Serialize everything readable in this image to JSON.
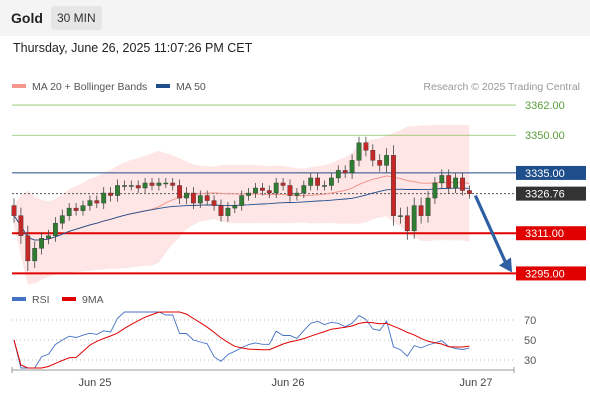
{
  "header": {
    "instrument": "Gold",
    "timeframe": "30 MIN"
  },
  "timestamp": "Thursday, June 26, 2025 11:07:26 PM CET",
  "colors": {
    "ma20": "#f4978e",
    "ma50": "#1f4e8c",
    "rsi": "#4472c4",
    "rsi_ma": "#e00000",
    "bands": "#fde2e0"
  },
  "chart_data": [
    {
      "type": "candlestick",
      "legend": [
        {
          "name": "MA 20 + Bollinger Bands",
          "color": "#f4978e"
        },
        {
          "name": "MA 50",
          "color": "#1f4e8c"
        }
      ],
      "watermark": "Research © 2025 Trading Central",
      "x_ticks": [
        "Jun 25",
        "Jun 26",
        "Jun 27"
      ],
      "ylim": [
        3290,
        3368
      ],
      "levels": [
        {
          "value": 3362.0,
          "label": "3362.00",
          "style": "green"
        },
        {
          "value": 3350.0,
          "label": "3350.00",
          "style": "green"
        },
        {
          "value": 3335.0,
          "label": "3335.00",
          "style": "blue"
        },
        {
          "value": 3326.76,
          "label": "3326.76",
          "style": "current"
        },
        {
          "value": 3311.0,
          "label": "3311.00",
          "style": "red"
        },
        {
          "value": 3295.0,
          "label": "3295.00",
          "style": "red"
        }
      ],
      "forecast_arrow": {
        "from": 3326.76,
        "to": 3295.0
      },
      "close": [
        3318,
        3310,
        3300,
        3305,
        3309,
        3310,
        3315,
        3318,
        3321,
        3320,
        3322,
        3324,
        3323,
        3327,
        3326,
        3330,
        3330,
        3330,
        3329,
        3331,
        3330,
        3331,
        3331,
        3330,
        3325,
        3327,
        3323,
        3326,
        3324,
        3322,
        3318,
        3321,
        3322,
        3326,
        3327,
        3329,
        3328,
        3327,
        3331,
        3330,
        3326,
        3327,
        3330,
        3333,
        3330,
        3330,
        3333,
        3336,
        3335,
        3340,
        3347,
        3344,
        3340,
        3338,
        3342,
        3318,
        3318,
        3312,
        3322,
        3318,
        3325,
        3331,
        3334,
        3329,
        3333,
        3328,
        3326.76
      ],
      "volatility": [
        3.5,
        4,
        5,
        3.5,
        3,
        3,
        3,
        3,
        2.5,
        2.5,
        2.5,
        2.5,
        2.5,
        3,
        3,
        3,
        2.5,
        2.5,
        2.5,
        2.5,
        2.5,
        2.5,
        2.5,
        2.5,
        3,
        3,
        3,
        2.5,
        2.5,
        2.5,
        3,
        3,
        2.5,
        2.5,
        2.5,
        2.5,
        2.5,
        2.5,
        2.5,
        2.5,
        3,
        2.5,
        2.5,
        2.5,
        2.5,
        2.5,
        2.5,
        2.5,
        2.5,
        3,
        3,
        3,
        3,
        3,
        3.5,
        5,
        4,
        4.5,
        4,
        4,
        3.5,
        3,
        3,
        3,
        2.5,
        2.5,
        2.5
      ]
    },
    {
      "type": "line",
      "legend": [
        {
          "name": "RSI",
          "color": "#4472c4"
        },
        {
          "name": "9MA",
          "color": "#e00000"
        }
      ],
      "ylim": [
        20,
        80
      ],
      "y_ticks": [
        70,
        50,
        30
      ],
      "y_tick_labels": [
        "70",
        "50",
        "30"
      ]
    }
  ]
}
